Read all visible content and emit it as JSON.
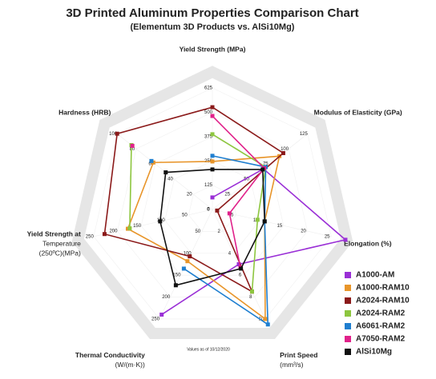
{
  "chart_data": {
    "type": "radar",
    "title": "3D Printed Aluminum Properties Comparison Chart",
    "subtitle": "(Elementum 3D Products vs. AlSi10Mg)",
    "note": "Values as of 10/12/2020",
    "axes": [
      {
        "label": [
          "Yield Strength (MPa)"
        ],
        "lim": [
          0,
          625
        ],
        "ticks": [
          0,
          125,
          250,
          375,
          500,
          625
        ]
      },
      {
        "label": [
          "Modulus of Elasticity (GPa)"
        ],
        "lim": [
          0,
          125
        ],
        "ticks": [
          0,
          25,
          50,
          75,
          100,
          125
        ]
      },
      {
        "label": [
          "Elongation (%)"
        ],
        "lim": [
          0,
          25
        ],
        "ticks": [
          0,
          5,
          10,
          15,
          20,
          25
        ]
      },
      {
        "label": [
          "Print Speed",
          "(mm³/s)"
        ],
        "lim": [
          0,
          10
        ],
        "ticks": [
          0,
          2,
          4,
          6,
          8,
          10
        ]
      },
      {
        "label": [
          "Thermal Conductivity",
          "(W/(m·K))"
        ],
        "lim": [
          0,
          250
        ],
        "ticks": [
          0,
          50,
          100,
          150,
          200,
          250
        ]
      },
      {
        "label": [
          "Yield Strength at",
          "Temperature",
          "(250ºC)(MPa)"
        ],
        "lim": [
          0,
          250
        ],
        "ticks": [
          0,
          50,
          100,
          150,
          200,
          250
        ]
      },
      {
        "label": [
          "Hardness (HRB)"
        ],
        "lim": [
          0,
          100
        ],
        "ticks": [
          0,
          20,
          40,
          60,
          80,
          100
        ]
      }
    ],
    "series": [
      {
        "name": "A1000-AM",
        "color": "#9a2fd6",
        "values": [
          62,
          67,
          28,
          5,
          240,
          null,
          null
        ]
      },
      {
        "name": "A1000-RAM10",
        "color": "#e8952a",
        "values": [
          247,
          88,
          11,
          10,
          118,
          178,
          62
        ]
      },
      {
        "name": "A2024-RAM10",
        "color": "#8b1a1a",
        "values": [
          526,
          93,
          1,
          7.5,
          107,
          227,
          100
        ]
      },
      {
        "name": "A2024-RAM2",
        "color": "#8dc63f",
        "values": [
          387,
          70,
          9.5,
          7.5,
          null,
          174,
          85
        ]
      },
      {
        "name": "A6061-RAM2",
        "color": "#1f7fd0",
        "values": [
          276,
          70,
          11,
          10.5,
          135,
          null,
          64
        ]
      },
      {
        "name": "A7050-RAM2",
        "color": "#e0218a",
        "values": [
          481,
          68,
          3.6,
          5.3,
          null,
          null,
          84
        ]
      },
      {
        "name": "AlSi10Mg",
        "color": "#111111",
        "values": [
          206,
          66,
          11,
          5.4,
          173,
          110,
          49
        ]
      }
    ]
  }
}
